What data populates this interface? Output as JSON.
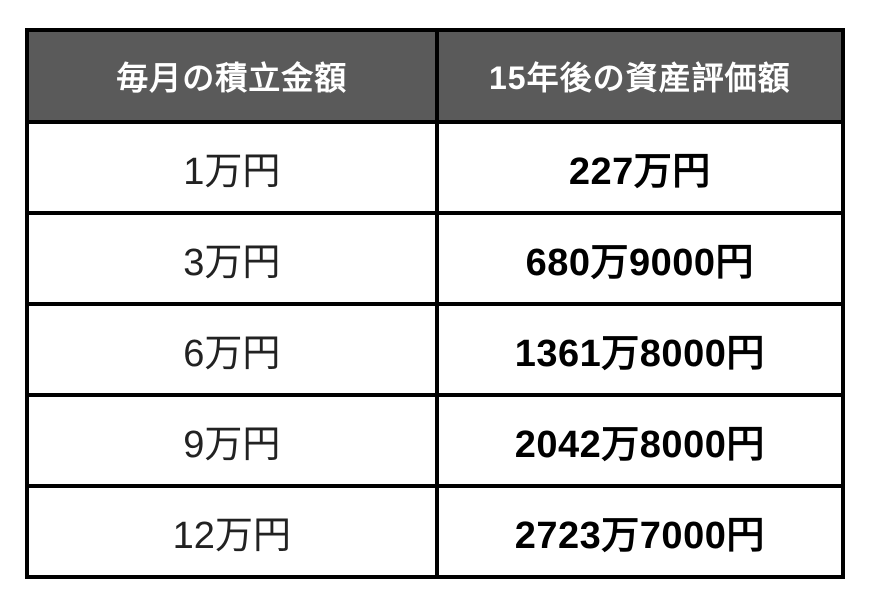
{
  "table": {
    "headers": [
      "毎月の積立金額",
      "15年後の資産評価額"
    ],
    "rows": [
      [
        "1万円",
        "227万円"
      ],
      [
        "3万円",
        "680万9000円"
      ],
      [
        "6万円",
        "1361万8000円"
      ],
      [
        "9万円",
        "2042万8000円"
      ],
      [
        "12万円",
        "2723万7000円"
      ]
    ]
  },
  "chart_data": {
    "type": "table",
    "columns": [
      "毎月の積立金額",
      "15年後の資産評価額"
    ],
    "rows": [
      [
        "1万円",
        "227万円"
      ],
      [
        "3万円",
        "680万9000円"
      ],
      [
        "6万円",
        "1361万8000円"
      ],
      [
        "9万円",
        "2042万8000円"
      ],
      [
        "12万円",
        "2723万7000円"
      ]
    ],
    "monthly_contribution_yen": [
      10000,
      30000,
      60000,
      90000,
      120000
    ],
    "valuation_after_15_years_yen": [
      2270000,
      6809000,
      13618000,
      20428000,
      27237000
    ]
  },
  "colors": {
    "header_bg": "#5a5a5a",
    "header_text": "#ffffff",
    "border": "#000000",
    "cell_bg": "#ffffff",
    "left_text": "#222222",
    "right_text": "#000000"
  }
}
